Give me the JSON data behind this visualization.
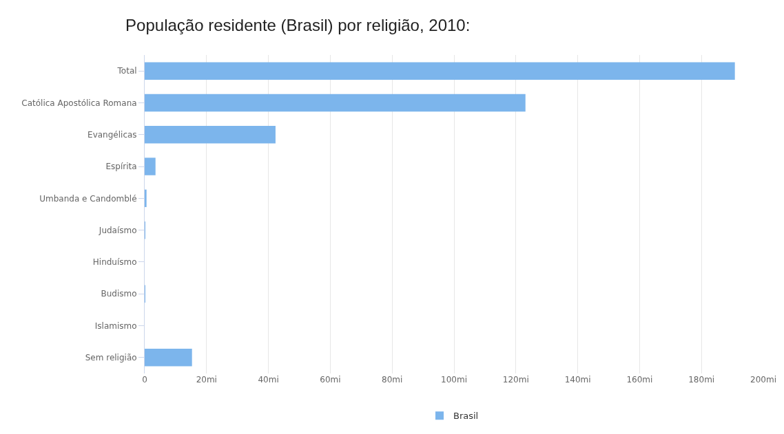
{
  "chart_data": {
    "type": "bar",
    "orientation": "horizontal",
    "title": "População residente (Brasil) por religião, 2010:",
    "categories": [
      "Total",
      "Católica Apostólica Romana",
      "Evangélicas",
      "Espírita",
      "Umbanda e Candomblé",
      "Judaísmo",
      "Hinduísmo",
      "Budismo",
      "Islamismo",
      "Sem religião"
    ],
    "series": [
      {
        "name": "Brasil",
        "color": "#7cb5ec",
        "values": [
          190.8,
          123.1,
          42.3,
          3.5,
          0.6,
          0.1,
          0,
          0.2,
          0,
          15.3
        ]
      }
    ],
    "xlim": [
      0,
      200
    ],
    "xticks": [
      {
        "value": 0,
        "label": "0"
      },
      {
        "value": 20,
        "label": "20mi"
      },
      {
        "value": 40,
        "label": "40mi"
      },
      {
        "value": 60,
        "label": "60mi"
      },
      {
        "value": 80,
        "label": "80mi"
      },
      {
        "value": 100,
        "label": "100mi"
      },
      {
        "value": 120,
        "label": "120mi"
      },
      {
        "value": 140,
        "label": "140mi"
      },
      {
        "value": 160,
        "label": "160mi"
      },
      {
        "value": 180,
        "label": "180mi"
      },
      {
        "value": 200,
        "label": "200mi"
      }
    ],
    "grid": "x",
    "legend": "bottom"
  }
}
